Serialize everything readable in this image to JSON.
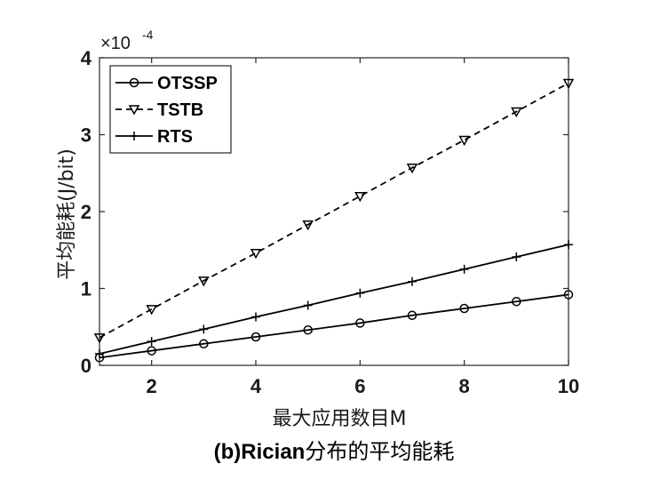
{
  "caption": {
    "prefix": "(b)Rician",
    "suffix": "分布的平均能耗"
  },
  "chart_data": {
    "type": "line",
    "title": "",
    "xlabel": "最大应用数目M",
    "ylabel": "平均能耗(J/bit)",
    "y_exponent_base": "×10",
    "y_exponent_power": "-4",
    "xlim": [
      1,
      10
    ],
    "ylim": [
      0,
      4
    ],
    "xticks": [
      2,
      4,
      6,
      8,
      10
    ],
    "yticks": [
      0,
      1,
      2,
      3,
      4
    ],
    "grid": false,
    "legend_position": "top-left",
    "x": [
      1,
      2,
      3,
      4,
      5,
      6,
      7,
      8,
      9,
      10
    ],
    "series": [
      {
        "name": "OTSSP",
        "marker": "circle",
        "line_style": "solid",
        "color": "#000000",
        "values": [
          0.1,
          0.19,
          0.28,
          0.37,
          0.46,
          0.55,
          0.65,
          0.74,
          0.83,
          0.92
        ]
      },
      {
        "name": "TSTB",
        "marker": "triangle-down",
        "line_style": "dashed",
        "color": "#000000",
        "values": [
          0.36,
          0.73,
          1.1,
          1.46,
          1.83,
          2.2,
          2.57,
          2.93,
          3.3,
          3.67
        ]
      },
      {
        "name": "RTS",
        "marker": "plus",
        "line_style": "solid",
        "color": "#000000",
        "values": [
          0.15,
          0.31,
          0.47,
          0.63,
          0.78,
          0.94,
          1.09,
          1.25,
          1.41,
          1.57
        ]
      }
    ]
  }
}
